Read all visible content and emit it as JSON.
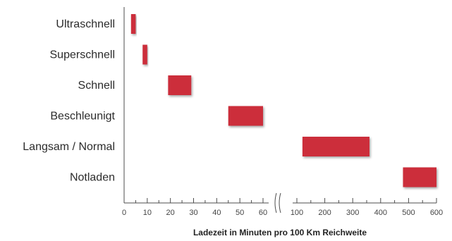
{
  "chart_data": {
    "type": "bar",
    "orientation": "horizontal-range",
    "title": "",
    "xlabel": "Ladezeit in Minuten pro 100 Km Reichweite",
    "ylabel": "",
    "categories": [
      "Ultraschnell",
      "Superschnell",
      "Schnell",
      "Beschleunigt",
      "Langsam / Normal",
      "Notladen"
    ],
    "ranges": [
      {
        "category": "Ultraschnell",
        "start": 3,
        "end": 5
      },
      {
        "category": "Superschnell",
        "start": 8,
        "end": 10
      },
      {
        "category": "Schnell",
        "start": 19,
        "end": 29
      },
      {
        "category": "Beschleunigt",
        "start": 45,
        "end": 60
      },
      {
        "category": "Langsam / Normal",
        "start": 120,
        "end": 360
      },
      {
        "category": "Notladen",
        "start": 480,
        "end": 600
      }
    ],
    "axis_break": {
      "low_segment": [
        0,
        60
      ],
      "high_segment": [
        100,
        600
      ]
    },
    "ticks_low": [
      0,
      10,
      20,
      30,
      40,
      50,
      60
    ],
    "ticks_high": [
      100,
      200,
      300,
      400,
      500,
      600
    ],
    "bar_color": "#cc2e3b",
    "grid": false
  }
}
